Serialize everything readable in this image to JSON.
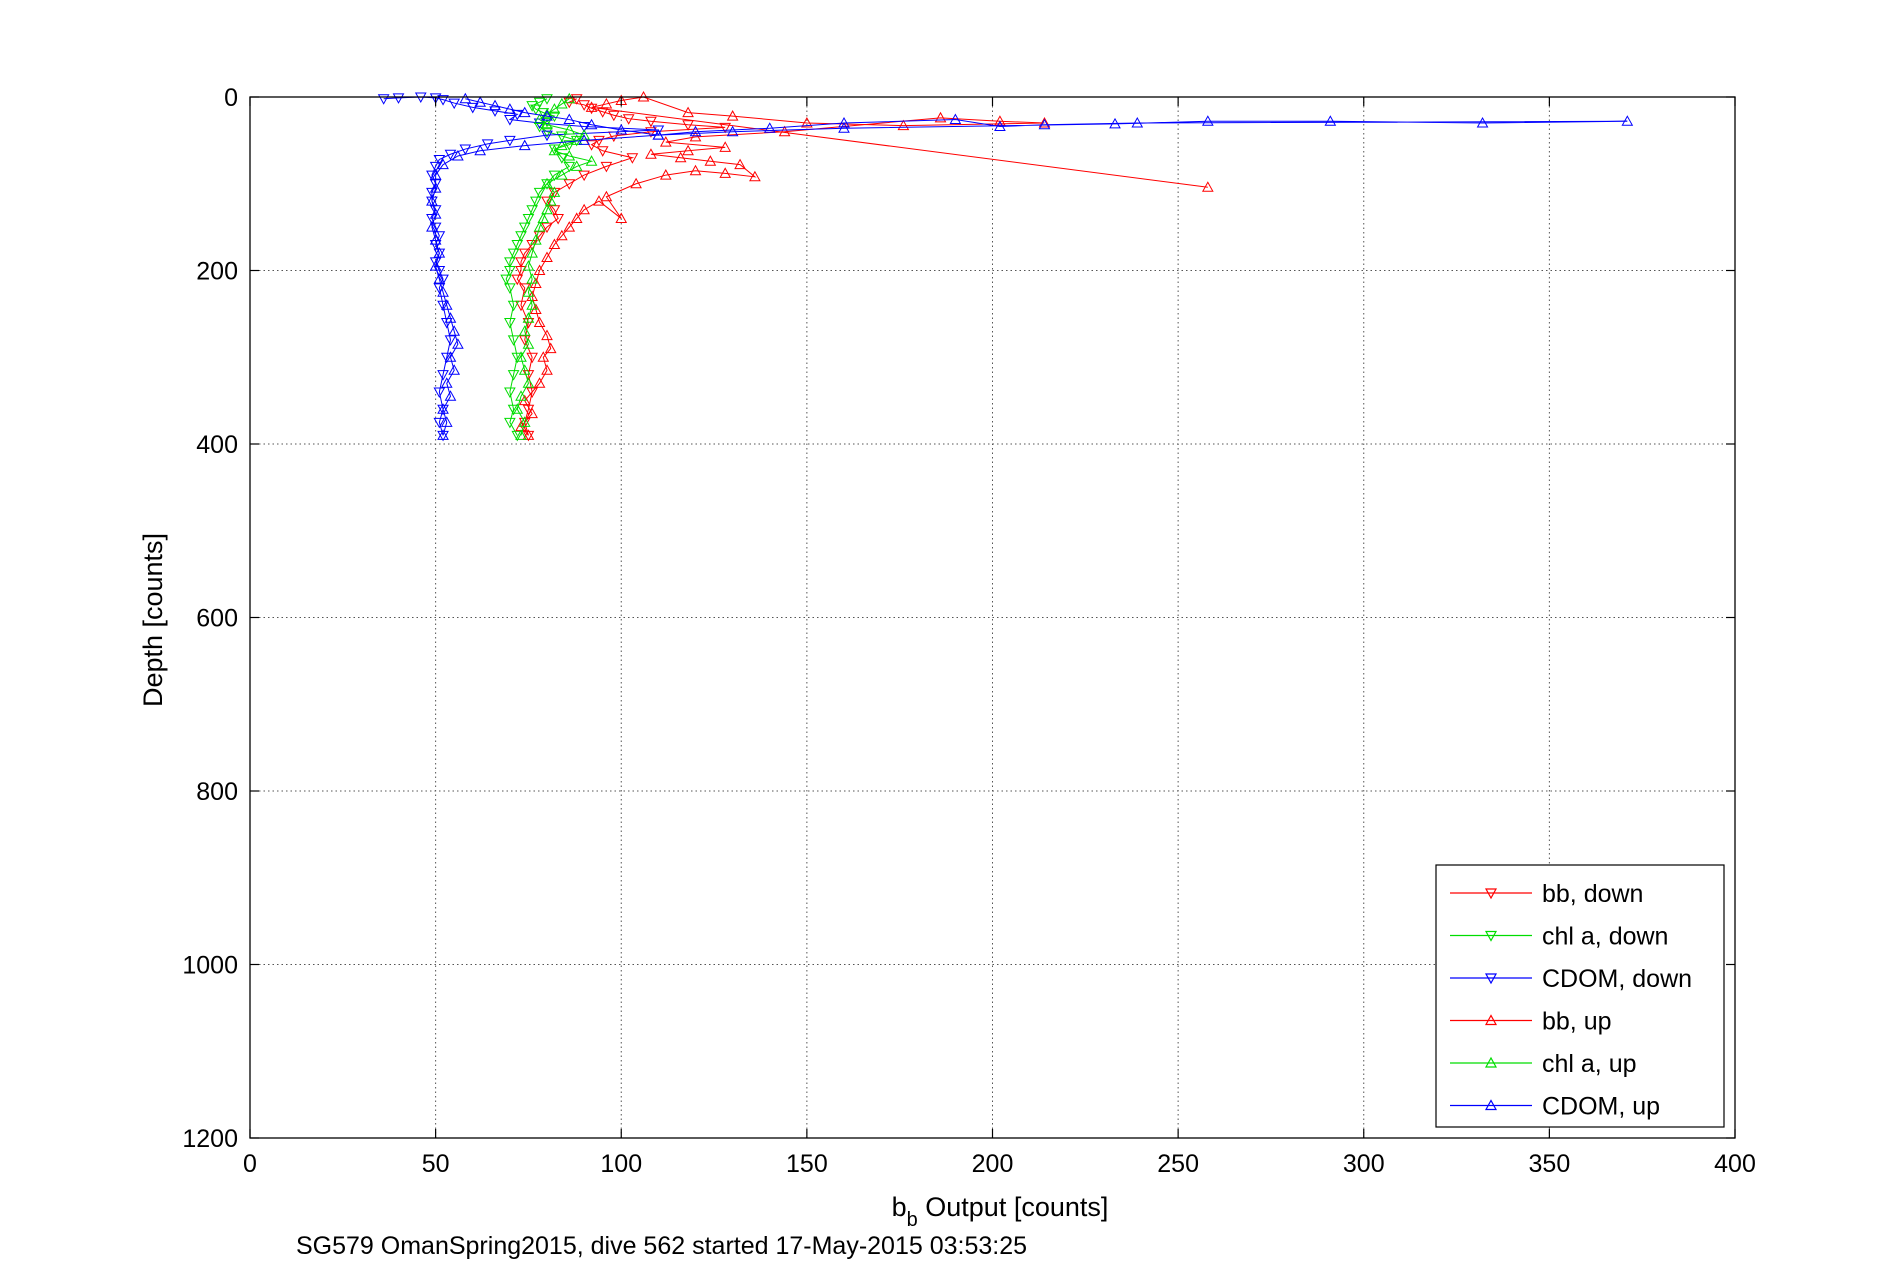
{
  "chart_data": {
    "type": "scatter",
    "title": "",
    "xlabel_main": "b",
    "xlabel_sub": "b",
    "xlabel_rest": " Output [counts]",
    "ylabel": "Depth [counts]",
    "caption": "SG579 OmanSpring2015, dive 562 started 17-May-2015 03:53:25",
    "xlim": [
      0,
      400
    ],
    "ylim": [
      0,
      1200
    ],
    "y_reversed": true,
    "grid": true,
    "legend_position": "lower-right",
    "xticks": [
      0,
      50,
      100,
      150,
      200,
      250,
      300,
      350,
      400
    ],
    "yticks": [
      0,
      200,
      400,
      600,
      800,
      1000,
      1200
    ],
    "series": [
      {
        "name": "bb, down",
        "color": "#ff0000",
        "marker": "triangle-down",
        "points": [
          [
            88,
            2
          ],
          [
            86,
            6
          ],
          [
            90,
            9
          ],
          [
            92,
            13
          ],
          [
            95,
            17
          ],
          [
            98,
            21
          ],
          [
            102,
            25
          ],
          [
            108,
            28
          ],
          [
            118,
            32
          ],
          [
            128,
            35
          ],
          [
            108,
            40
          ],
          [
            98,
            45
          ],
          [
            94,
            50
          ],
          [
            92,
            55
          ],
          [
            95,
            62
          ],
          [
            103,
            70
          ],
          [
            96,
            80
          ],
          [
            90,
            90
          ],
          [
            86,
            100
          ],
          [
            82,
            110
          ],
          [
            80,
            120
          ],
          [
            82,
            130
          ],
          [
            83,
            140
          ],
          [
            80,
            150
          ],
          [
            78,
            160
          ],
          [
            76,
            170
          ],
          [
            74,
            180
          ],
          [
            73,
            190
          ],
          [
            73,
            200
          ],
          [
            72,
            210
          ],
          [
            74,
            220
          ],
          [
            73,
            240
          ],
          [
            75,
            260
          ],
          [
            74,
            280
          ],
          [
            76,
            300
          ],
          [
            75,
            320
          ],
          [
            76,
            340
          ],
          [
            75,
            360
          ],
          [
            74,
            375
          ],
          [
            75,
            390
          ]
        ]
      },
      {
        "name": "chl a, down",
        "color": "#00dd00",
        "marker": "triangle-down",
        "points": [
          [
            80,
            2
          ],
          [
            78,
            6
          ],
          [
            76,
            10
          ],
          [
            77,
            14
          ],
          [
            79,
            18
          ],
          [
            82,
            22
          ],
          [
            80,
            28
          ],
          [
            78,
            34
          ],
          [
            80,
            40
          ],
          [
            84,
            45
          ],
          [
            88,
            50
          ],
          [
            86,
            55
          ],
          [
            82,
            60
          ],
          [
            84,
            70
          ],
          [
            86,
            80
          ],
          [
            82,
            90
          ],
          [
            80,
            100
          ],
          [
            78,
            110
          ],
          [
            77,
            120
          ],
          [
            76,
            130
          ],
          [
            75,
            140
          ],
          [
            74,
            150
          ],
          [
            73,
            160
          ],
          [
            72,
            170
          ],
          [
            71,
            180
          ],
          [
            70,
            190
          ],
          [
            70,
            200
          ],
          [
            69,
            210
          ],
          [
            70,
            220
          ],
          [
            71,
            240
          ],
          [
            70,
            260
          ],
          [
            71,
            280
          ],
          [
            72,
            300
          ],
          [
            71,
            320
          ],
          [
            70,
            340
          ],
          [
            71,
            360
          ],
          [
            70,
            375
          ],
          [
            72,
            390
          ]
        ]
      },
      {
        "name": "CDOM, down",
        "color": "#0000ff",
        "marker": "triangle-down",
        "points": [
          [
            36,
            2
          ],
          [
            40,
            1
          ],
          [
            46,
            0
          ],
          [
            50,
            1
          ],
          [
            52,
            3
          ],
          [
            55,
            7
          ],
          [
            60,
            12
          ],
          [
            66,
            16
          ],
          [
            72,
            20
          ],
          [
            70,
            26
          ],
          [
            78,
            30
          ],
          [
            90,
            34
          ],
          [
            110,
            38
          ],
          [
            80,
            44
          ],
          [
            70,
            50
          ],
          [
            64,
            54
          ],
          [
            58,
            60
          ],
          [
            54,
            66
          ],
          [
            51,
            72
          ],
          [
            50,
            80
          ],
          [
            49,
            90
          ],
          [
            50,
            100
          ],
          [
            49,
            110
          ],
          [
            49,
            120
          ],
          [
            50,
            130
          ],
          [
            49,
            140
          ],
          [
            50,
            150
          ],
          [
            51,
            160
          ],
          [
            50,
            170
          ],
          [
            51,
            180
          ],
          [
            50,
            190
          ],
          [
            51,
            200
          ],
          [
            52,
            210
          ],
          [
            51,
            220
          ],
          [
            52,
            240
          ],
          [
            53,
            260
          ],
          [
            54,
            280
          ],
          [
            53,
            300
          ],
          [
            52,
            320
          ],
          [
            51,
            340
          ],
          [
            52,
            360
          ],
          [
            51,
            375
          ],
          [
            52,
            390
          ]
        ]
      },
      {
        "name": "bb, up",
        "color": "#ff0000",
        "marker": "triangle-up",
        "points": [
          [
            75,
            390
          ],
          [
            73,
            380
          ],
          [
            76,
            365
          ],
          [
            74,
            350
          ],
          [
            78,
            330
          ],
          [
            80,
            315
          ],
          [
            79,
            300
          ],
          [
            81,
            290
          ],
          [
            80,
            275
          ],
          [
            78,
            260
          ],
          [
            77,
            245
          ],
          [
            76,
            230
          ],
          [
            77,
            215
          ],
          [
            78,
            200
          ],
          [
            80,
            185
          ],
          [
            82,
            170
          ],
          [
            84,
            160
          ],
          [
            86,
            150
          ],
          [
            88,
            140
          ],
          [
            90,
            130
          ],
          [
            94,
            120
          ],
          [
            100,
            140
          ],
          [
            96,
            115
          ],
          [
            104,
            100
          ],
          [
            112,
            90
          ],
          [
            120,
            85
          ],
          [
            128,
            88
          ],
          [
            136,
            92
          ],
          [
            132,
            78
          ],
          [
            124,
            74
          ],
          [
            116,
            70
          ],
          [
            108,
            66
          ],
          [
            118,
            62
          ],
          [
            128,
            58
          ],
          [
            112,
            52
          ],
          [
            120,
            46
          ],
          [
            144,
            40
          ],
          [
            186,
            24
          ],
          [
            202,
            28
          ],
          [
            214,
            30
          ],
          [
            176,
            33
          ],
          [
            150,
            30
          ],
          [
            130,
            22
          ],
          [
            118,
            18
          ],
          [
            106,
            0
          ],
          [
            100,
            4
          ],
          [
            96,
            8
          ],
          [
            92,
            12
          ],
          [
            258,
            104
          ]
        ]
      },
      {
        "name": "chl a, up",
        "color": "#00dd00",
        "marker": "triangle-up",
        "points": [
          [
            73,
            390
          ],
          [
            74,
            375
          ],
          [
            72,
            360
          ],
          [
            73,
            345
          ],
          [
            75,
            330
          ],
          [
            74,
            315
          ],
          [
            73,
            300
          ],
          [
            75,
            285
          ],
          [
            74,
            270
          ],
          [
            75,
            255
          ],
          [
            76,
            240
          ],
          [
            75,
            225
          ],
          [
            76,
            210
          ],
          [
            75,
            195
          ],
          [
            76,
            180
          ],
          [
            77,
            165
          ],
          [
            78,
            150
          ],
          [
            79,
            140
          ],
          [
            80,
            130
          ],
          [
            81,
            120
          ],
          [
            82,
            110
          ],
          [
            80,
            100
          ],
          [
            84,
            90
          ],
          [
            88,
            80
          ],
          [
            92,
            74
          ],
          [
            86,
            68
          ],
          [
            82,
            62
          ],
          [
            84,
            56
          ],
          [
            88,
            50
          ],
          [
            90,
            44
          ],
          [
            86,
            38
          ],
          [
            80,
            32
          ],
          [
            78,
            26
          ],
          [
            80,
            20
          ],
          [
            82,
            14
          ],
          [
            84,
            8
          ],
          [
            86,
            2
          ]
        ]
      },
      {
        "name": "CDOM, up",
        "color": "#0000ff",
        "marker": "triangle-up",
        "points": [
          [
            52,
            390
          ],
          [
            53,
            375
          ],
          [
            52,
            360
          ],
          [
            54,
            345
          ],
          [
            53,
            330
          ],
          [
            55,
            315
          ],
          [
            54,
            300
          ],
          [
            56,
            285
          ],
          [
            55,
            270
          ],
          [
            54,
            255
          ],
          [
            53,
            240
          ],
          [
            52,
            225
          ],
          [
            51,
            210
          ],
          [
            50,
            195
          ],
          [
            51,
            180
          ],
          [
            50,
            165
          ],
          [
            49,
            150
          ],
          [
            50,
            135
          ],
          [
            49,
            120
          ],
          [
            50,
            105
          ],
          [
            50,
            90
          ],
          [
            52,
            78
          ],
          [
            56,
            68
          ],
          [
            62,
            62
          ],
          [
            74,
            56
          ],
          [
            90,
            50
          ],
          [
            110,
            44
          ],
          [
            130,
            40
          ],
          [
            160,
            36
          ],
          [
            233,
            31
          ],
          [
            258,
            28
          ],
          [
            291,
            28
          ],
          [
            332,
            30
          ],
          [
            371,
            28
          ],
          [
            239,
            30
          ],
          [
            214,
            32
          ],
          [
            202,
            34
          ],
          [
            190,
            26
          ],
          [
            160,
            30
          ],
          [
            140,
            36
          ],
          [
            120,
            40
          ],
          [
            110,
            44
          ],
          [
            100,
            38
          ],
          [
            92,
            32
          ],
          [
            86,
            26
          ],
          [
            80,
            22
          ],
          [
            74,
            18
          ],
          [
            70,
            14
          ],
          [
            66,
            10
          ],
          [
            62,
            6
          ],
          [
            58,
            2
          ]
        ]
      }
    ]
  }
}
